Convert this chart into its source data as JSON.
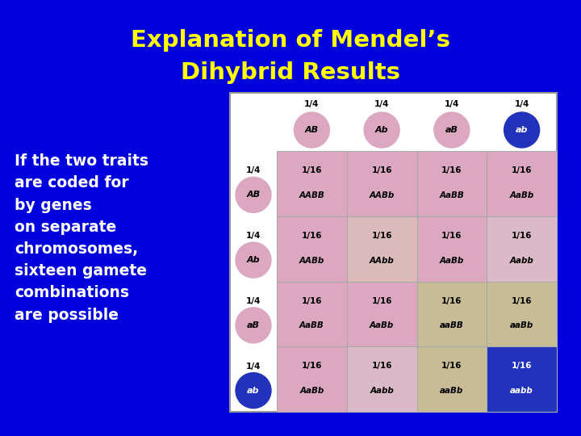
{
  "bg_color": "#0000dd",
  "title_line1": "Explanation of Mendel’s",
  "title_line2": "Dihybrid Results",
  "title_color": "#ffff00",
  "body_text": "If the two traits\nare coded for\nby genes\non separate\nchromosomes,\nsixteen gamete\ncombinations\nare possible",
  "body_color": "#ffffff",
  "col_labels": [
    "AB",
    "Ab",
    "aB",
    "ab"
  ],
  "row_labels": [
    "AB",
    "Ab",
    "aB",
    "ab"
  ],
  "cell_contents": [
    [
      "AABB",
      "AABb",
      "AaBB",
      "AaBb"
    ],
    [
      "AABb",
      "AAbb",
      "AaBb",
      "Aabb"
    ],
    [
      "AaBB",
      "AaBb",
      "aaBB",
      "aaBb"
    ],
    [
      "AaBb",
      "Aabb",
      "aaBb",
      "aabb"
    ]
  ],
  "cell_colors": [
    [
      "#dba8c0",
      "#dba8c0",
      "#dba8c0",
      "#dba8c0"
    ],
    [
      "#dba8c0",
      "#dbbaba",
      "#dba8c0",
      "#dbbac8"
    ],
    [
      "#dba8c0",
      "#dba8c0",
      "#c8bc96",
      "#c8bc96"
    ],
    [
      "#dba8c0",
      "#dbbac8",
      "#c8bc96",
      "#2233bb"
    ]
  ],
  "cell_text_colors": [
    [
      "#000000",
      "#000000",
      "#000000",
      "#000000"
    ],
    [
      "#000000",
      "#000000",
      "#000000",
      "#000000"
    ],
    [
      "#000000",
      "#000000",
      "#000000",
      "#000000"
    ],
    [
      "#000000",
      "#000000",
      "#000000",
      "#ffffff"
    ]
  ],
  "pink_circle": "#dba8c0",
  "blue_circle": "#2233bb",
  "white": "#ffffff",
  "black": "#000000"
}
